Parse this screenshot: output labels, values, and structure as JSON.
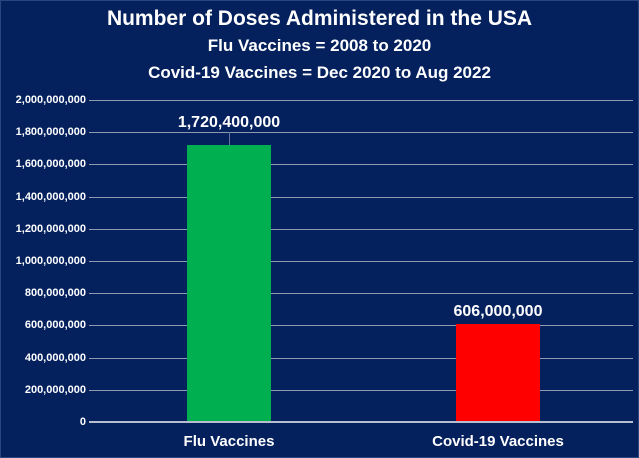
{
  "chart_data": {
    "type": "bar",
    "title": "Number of Doses Administered in the USA",
    "subtitle_lines": [
      "Flu Vaccines = 2008 to 2020",
      "Covid-19 Vaccines = Dec 2020 to Aug 2022"
    ],
    "categories": [
      "Flu Vaccines",
      "Covid-19 Vaccines"
    ],
    "values": [
      1720400000,
      606000000
    ],
    "value_labels": [
      "1,720,400,000",
      "606,000,000"
    ],
    "bar_colors": [
      "#00b050",
      "#ff0000"
    ],
    "leader_lines": [
      true,
      false
    ],
    "xlabel": "",
    "ylabel": "",
    "ylim": [
      0,
      2000000000
    ],
    "ytick_interval": 200000000,
    "ytick_labels": [
      "0",
      "200,000,000",
      "400,000,000",
      "600,000,000",
      "800,000,000",
      "1,000,000,000",
      "1,200,000,000",
      "1,400,000,000",
      "1,600,000,000",
      "1,800,000,000",
      "2,000,000,000"
    ],
    "grid": true,
    "legend": "none",
    "colors": {
      "background": "#04215e",
      "gridline": "#8f99b0",
      "axis_line": "#b7bfce",
      "text": "#ffffff",
      "flu_bar": "#00b050",
      "covid_bar": "#ff0000"
    }
  }
}
